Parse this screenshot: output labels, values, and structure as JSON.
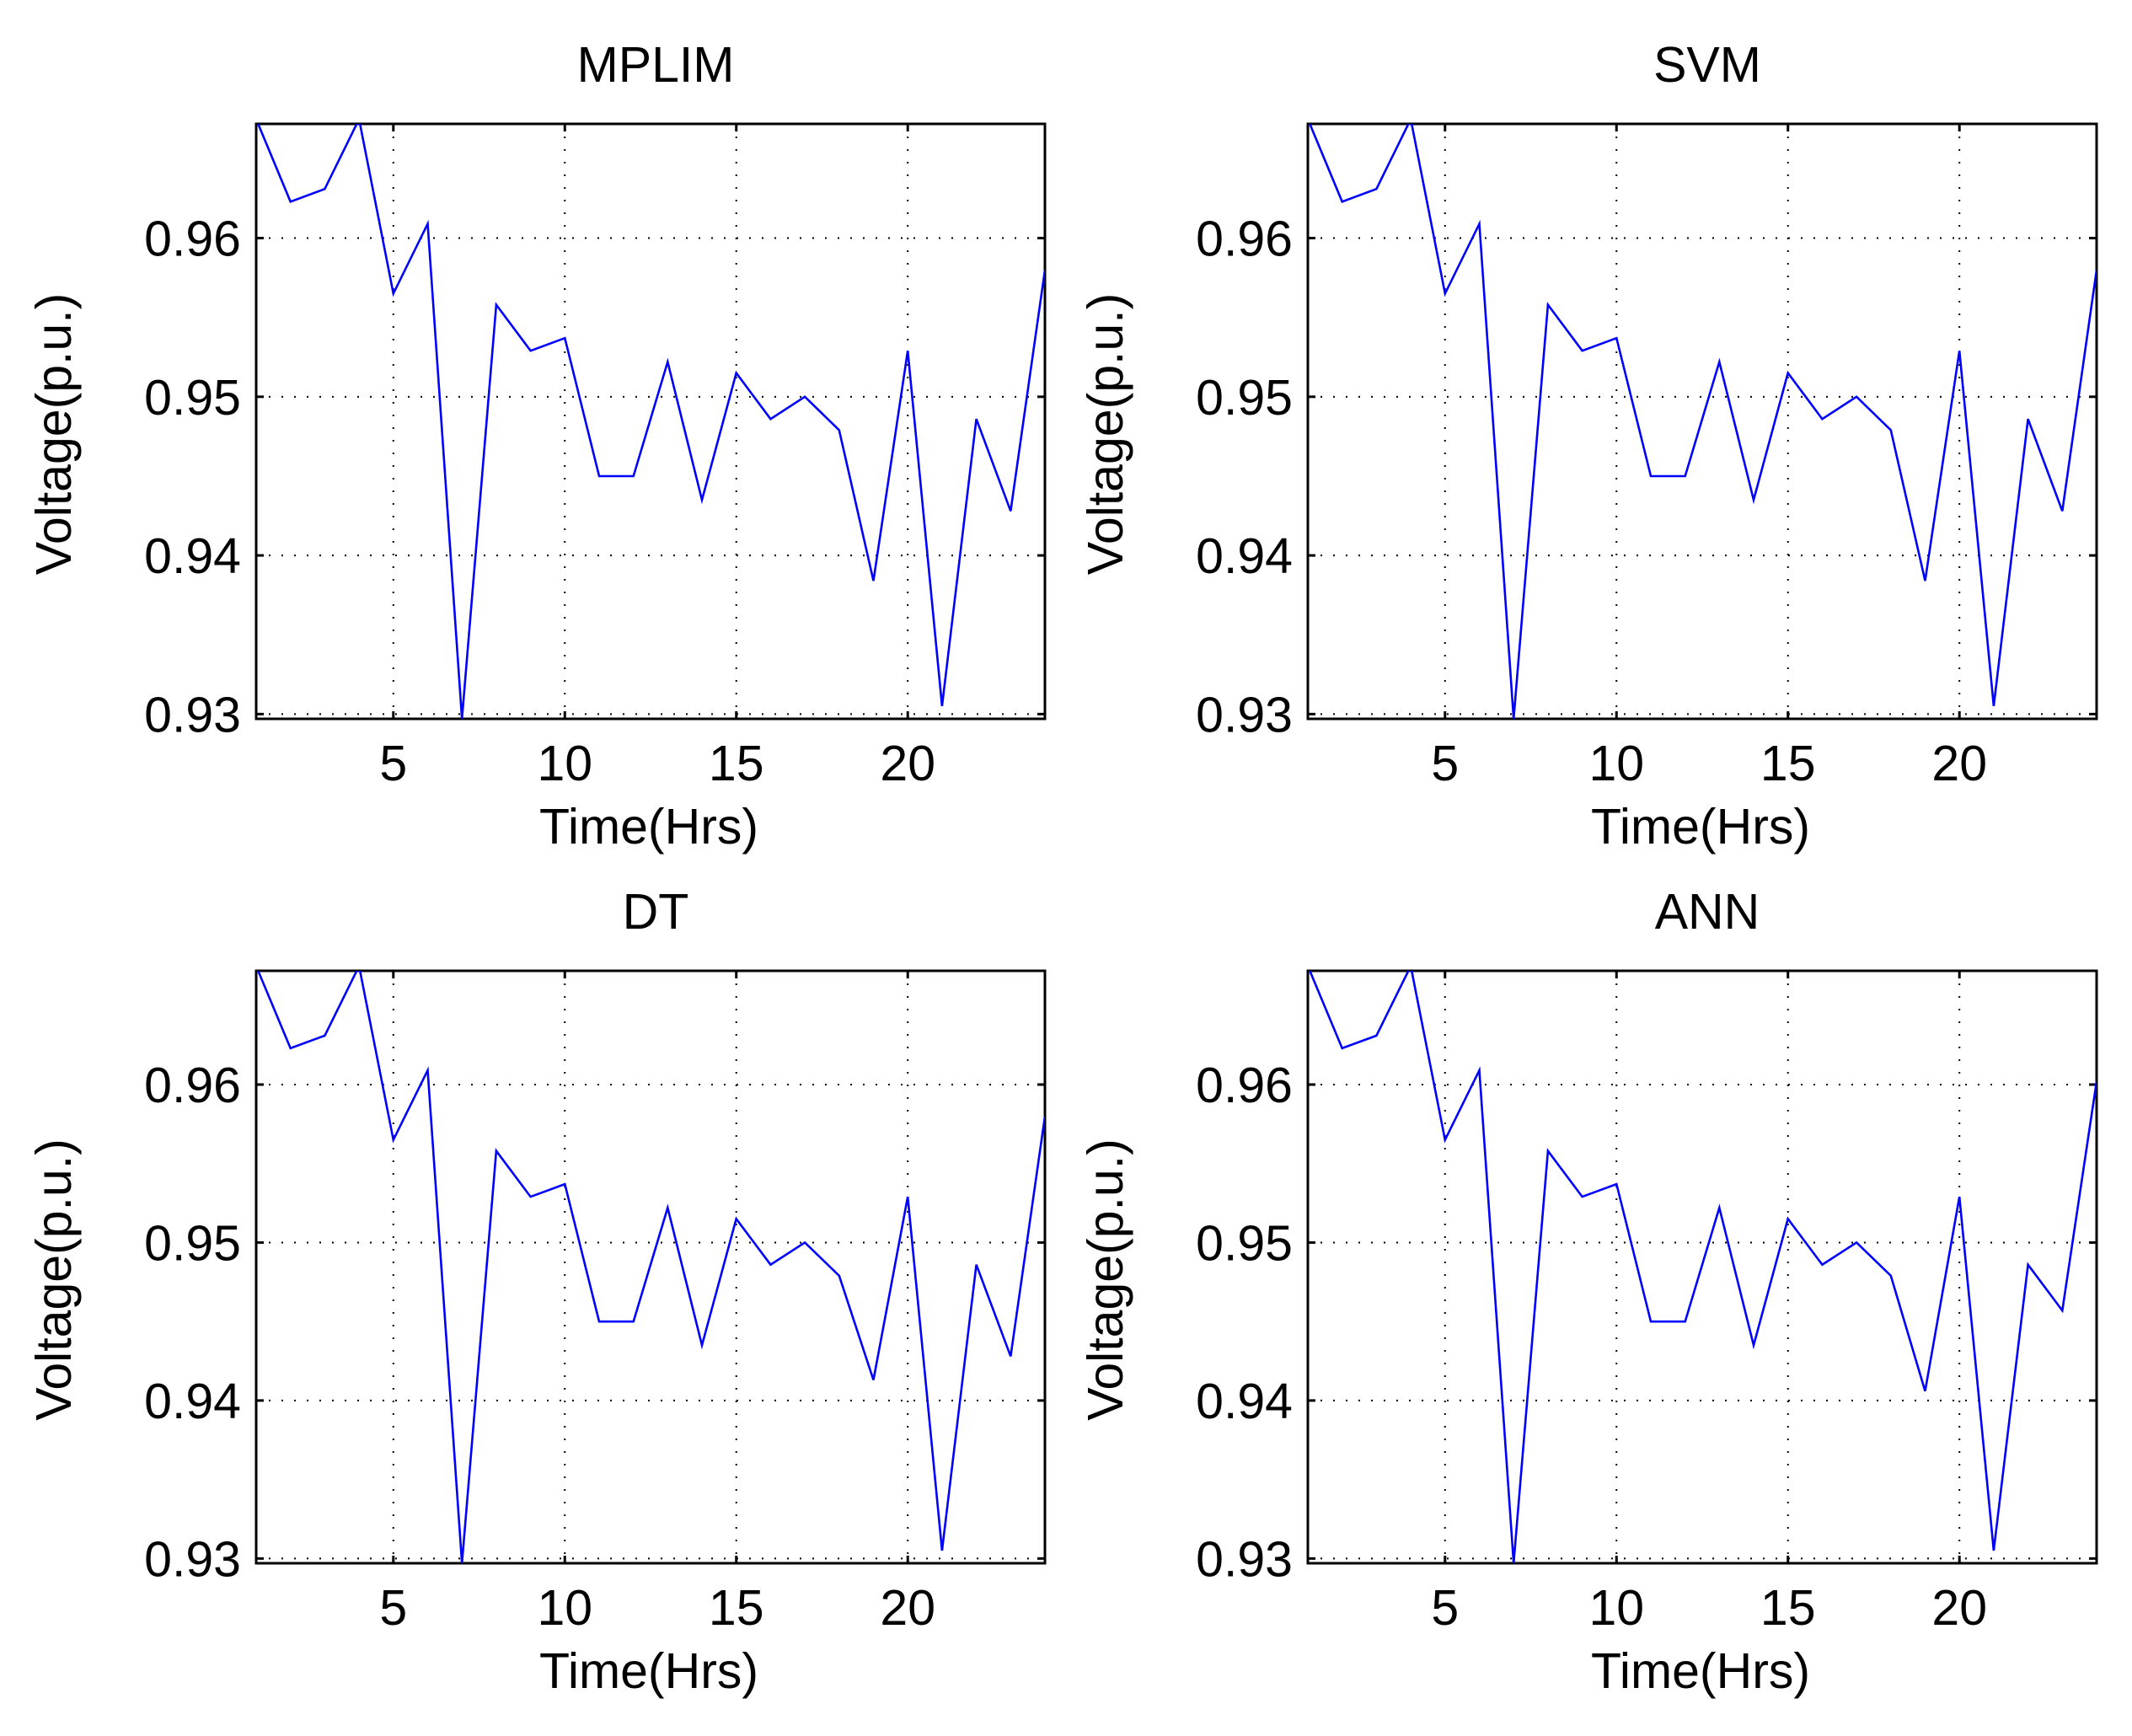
{
  "colors": {
    "series": "#0000ff",
    "axes": "#000000",
    "background": "#ffffff"
  },
  "chart_data": [
    {
      "type": "line",
      "title": "MPLIM",
      "xlabel": "Time(Hrs)",
      "ylabel": "Voltage(p.u.)",
      "xlim": [
        1,
        24
      ],
      "ylim": [
        0.9297,
        0.9672
      ],
      "xticks": [
        5,
        10,
        15,
        20
      ],
      "xtick_labels": [
        "5",
        "10",
        "15",
        "20"
      ],
      "yticks": [
        0.93,
        0.94,
        0.95,
        0.96
      ],
      "ytick_labels": [
        "0.93",
        "0.94",
        "0.95",
        "0.96"
      ],
      "grid": true,
      "x": [
        1,
        2,
        3,
        4,
        5,
        6,
        7,
        8,
        9,
        10,
        11,
        12,
        13,
        14,
        15,
        16,
        17,
        18,
        19,
        20,
        21,
        22,
        23,
        24
      ],
      "values": [
        0.9675,
        0.9623,
        0.9631,
        0.9675,
        0.9565,
        0.9609,
        0.9297,
        0.9558,
        0.9529,
        0.9537,
        0.945,
        0.945,
        0.9522,
        0.9435,
        0.9515,
        0.9486,
        0.95,
        0.9479,
        0.9384,
        0.9529,
        0.9305,
        0.9486,
        0.9428,
        0.958
      ]
    },
    {
      "type": "line",
      "title": "SVM",
      "xlabel": "Time(Hrs)",
      "ylabel": "Voltage(p.u.)",
      "xlim": [
        1,
        24
      ],
      "ylim": [
        0.9297,
        0.9672
      ],
      "xticks": [
        5,
        10,
        15,
        20
      ],
      "xtick_labels": [
        "5",
        "10",
        "15",
        "20"
      ],
      "yticks": [
        0.93,
        0.94,
        0.95,
        0.96
      ],
      "ytick_labels": [
        "0.93",
        "0.94",
        "0.95",
        "0.96"
      ],
      "grid": true,
      "x": [
        1,
        2,
        3,
        4,
        5,
        6,
        7,
        8,
        9,
        10,
        11,
        12,
        13,
        14,
        15,
        16,
        17,
        18,
        19,
        20,
        21,
        22,
        23,
        24
      ],
      "values": [
        0.9675,
        0.9623,
        0.9631,
        0.9675,
        0.9565,
        0.9609,
        0.9297,
        0.9558,
        0.9529,
        0.9537,
        0.945,
        0.945,
        0.9522,
        0.9435,
        0.9515,
        0.9486,
        0.95,
        0.9479,
        0.9384,
        0.9529,
        0.9305,
        0.9486,
        0.9428,
        0.958
      ]
    },
    {
      "type": "line",
      "title": "DT",
      "xlabel": "Time(Hrs)",
      "ylabel": "Voltage(p.u.)",
      "xlim": [
        1,
        24
      ],
      "ylim": [
        0.9297,
        0.9672
      ],
      "xticks": [
        5,
        10,
        15,
        20
      ],
      "xtick_labels": [
        "5",
        "10",
        "15",
        "20"
      ],
      "yticks": [
        0.93,
        0.94,
        0.95,
        0.96
      ],
      "ytick_labels": [
        "0.93",
        "0.94",
        "0.95",
        "0.96"
      ],
      "grid": true,
      "x": [
        1,
        2,
        3,
        4,
        5,
        6,
        7,
        8,
        9,
        10,
        11,
        12,
        13,
        14,
        15,
        16,
        17,
        18,
        19,
        20,
        21,
        22,
        23,
        24
      ],
      "values": [
        0.9675,
        0.9623,
        0.9631,
        0.9675,
        0.9565,
        0.9609,
        0.9297,
        0.9558,
        0.9529,
        0.9537,
        0.945,
        0.945,
        0.9522,
        0.9435,
        0.9515,
        0.9486,
        0.95,
        0.9479,
        0.9413,
        0.9529,
        0.9305,
        0.9486,
        0.9428,
        0.958
      ]
    },
    {
      "type": "line",
      "title": "ANN",
      "xlabel": "Time(Hrs)",
      "ylabel": "Voltage(p.u.)",
      "xlim": [
        1,
        24
      ],
      "ylim": [
        0.9297,
        0.9672
      ],
      "xticks": [
        5,
        10,
        15,
        20
      ],
      "xtick_labels": [
        "5",
        "10",
        "15",
        "20"
      ],
      "yticks": [
        0.93,
        0.94,
        0.95,
        0.96
      ],
      "ytick_labels": [
        "0.93",
        "0.94",
        "0.95",
        "0.96"
      ],
      "grid": true,
      "x": [
        1,
        2,
        3,
        4,
        5,
        6,
        7,
        8,
        9,
        10,
        11,
        12,
        13,
        14,
        15,
        16,
        17,
        18,
        19,
        20,
        21,
        22,
        23,
        24
      ],
      "values": [
        0.9675,
        0.9623,
        0.9631,
        0.9675,
        0.9565,
        0.9609,
        0.9297,
        0.9558,
        0.9529,
        0.9537,
        0.945,
        0.945,
        0.9522,
        0.9435,
        0.9515,
        0.9486,
        0.95,
        0.9479,
        0.9406,
        0.9529,
        0.9305,
        0.9486,
        0.9457,
        0.9602
      ]
    }
  ]
}
